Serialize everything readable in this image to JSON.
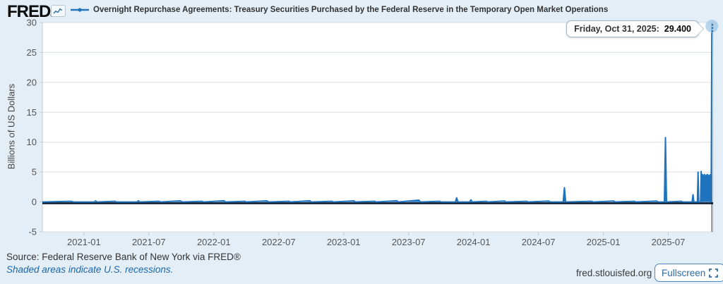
{
  "header": {
    "logo_text": "FRED",
    "logo_reg": "®",
    "series_label": "Overnight Repurchase Agreements: Treasury Securities Purchased by the Federal Reserve in the Temporary Open Market Operations"
  },
  "tooltip": {
    "date_label": "Friday, Oct 31, 2025:",
    "value": "29.400"
  },
  "menu_icon": "⋮",
  "footer": {
    "source": "Source: Federal Reserve Bank of New York via FRED®",
    "recession_note": "Shaded areas indicate U.S. recessions.",
    "site": "fred.stlouisfed.org",
    "fullscreen_label": "Fullscreen"
  },
  "colors": {
    "series": "#1f74bd",
    "zero_line": "#06182c",
    "grid": "#d9dde0",
    "axis": "#c3c9ce",
    "tick_label": "#555555",
    "page_bg": "#e3eef6",
    "plot_bg": "#ffffff",
    "crosshair": "#5a5f64",
    "halo": "#9ec7e8",
    "accent_blue": "#2e6da4"
  },
  "chart_data": {
    "type": "line",
    "title": "Overnight Repurchase Agreements: Treasury Securities Purchased by the Federal Reserve in the Temporary Open Market Operations",
    "xlabel": "",
    "ylabel": "Billions of US Dollars",
    "ylim": [
      -5,
      30
    ],
    "y_ticks": [
      30,
      25,
      20,
      15,
      10,
      5,
      0,
      -5
    ],
    "x_domain": [
      2020.68,
      2025.845
    ],
    "x_ticks": [
      {
        "label": "2021-01",
        "t": 2021.0
      },
      {
        "label": "2021-07",
        "t": 2021.5
      },
      {
        "label": "2022-01",
        "t": 2022.0
      },
      {
        "label": "2022-07",
        "t": 2022.5
      },
      {
        "label": "2023-01",
        "t": 2023.0
      },
      {
        "label": "2023-07",
        "t": 2023.5
      },
      {
        "label": "2024-01",
        "t": 2024.0
      },
      {
        "label": "2024-07",
        "t": 2024.5
      },
      {
        "label": "2025-01",
        "t": 2025.0
      },
      {
        "label": "2025-07",
        "t": 2025.5
      }
    ],
    "grid": true,
    "legend_position": "top",
    "last_point": {
      "t": 2025.835,
      "value": 29.4,
      "date": "Friday, Oct 31, 2025"
    },
    "points": [
      [
        2020.68,
        0
      ],
      [
        2020.9,
        0.12
      ],
      [
        2020.92,
        0
      ],
      [
        2021.08,
        0
      ],
      [
        2021.09,
        0.18
      ],
      [
        2021.1,
        0
      ],
      [
        2021.24,
        0.12
      ],
      [
        2021.25,
        0
      ],
      [
        2021.41,
        0
      ],
      [
        2021.42,
        0.2
      ],
      [
        2021.43,
        0
      ],
      [
        2021.58,
        0.12
      ],
      [
        2021.59,
        0
      ],
      [
        2021.74,
        0.18
      ],
      [
        2021.76,
        0
      ],
      [
        2021.91,
        0.12
      ],
      [
        2021.92,
        0
      ],
      [
        2022.08,
        0.2
      ],
      [
        2022.09,
        0
      ],
      [
        2022.24,
        0.12
      ],
      [
        2022.25,
        0
      ],
      [
        2022.41,
        0.18
      ],
      [
        2022.42,
        0
      ],
      [
        2022.58,
        0.12
      ],
      [
        2022.59,
        0
      ],
      [
        2022.74,
        0.2
      ],
      [
        2022.75,
        0
      ],
      [
        2022.91,
        0.12
      ],
      [
        2022.92,
        0
      ],
      [
        2023.08,
        0.18
      ],
      [
        2023.09,
        0
      ],
      [
        2023.24,
        0.12
      ],
      [
        2023.25,
        0
      ],
      [
        2023.41,
        0.2
      ],
      [
        2023.42,
        0
      ],
      [
        2023.58,
        0.3
      ],
      [
        2023.59,
        0
      ],
      [
        2023.74,
        0.12
      ],
      [
        2023.75,
        0
      ],
      [
        2023.86,
        0
      ],
      [
        2023.87,
        0.7
      ],
      [
        2023.88,
        0
      ],
      [
        2023.97,
        0
      ],
      [
        2023.98,
        0.35
      ],
      [
        2023.99,
        0
      ],
      [
        2024.1,
        0.12
      ],
      [
        2024.11,
        0
      ],
      [
        2024.24,
        0.15
      ],
      [
        2024.25,
        0
      ],
      [
        2024.41,
        0.12
      ],
      [
        2024.42,
        0
      ],
      [
        2024.58,
        0.15
      ],
      [
        2024.59,
        0
      ],
      [
        2024.69,
        0
      ],
      [
        2024.7,
        2.4
      ],
      [
        2024.71,
        0
      ],
      [
        2024.91,
        0.12
      ],
      [
        2024.92,
        0
      ],
      [
        2025.08,
        0.15
      ],
      [
        2025.09,
        0
      ],
      [
        2025.24,
        0.12
      ],
      [
        2025.25,
        0
      ],
      [
        2025.41,
        0.15
      ],
      [
        2025.42,
        0
      ],
      [
        2025.47,
        0
      ],
      [
        2025.478,
        10.75
      ],
      [
        2025.486,
        0
      ],
      [
        2025.6,
        0.12
      ],
      [
        2025.61,
        0
      ],
      [
        2025.683,
        0
      ],
      [
        2025.69,
        1.2
      ],
      [
        2025.697,
        0
      ],
      [
        2025.724,
        0
      ],
      [
        2025.729,
        5.0
      ],
      [
        2025.734,
        0
      ],
      [
        2025.748,
        0
      ],
      [
        2025.753,
        5.1
      ],
      [
        2025.758,
        0.6
      ],
      [
        2025.762,
        4.6
      ],
      [
        2025.77,
        4.2
      ],
      [
        2025.778,
        4.6
      ],
      [
        2025.79,
        4.25
      ],
      [
        2025.8,
        4.6
      ],
      [
        2025.81,
        4.3
      ],
      [
        2025.822,
        4.55
      ],
      [
        2025.827,
        0.6
      ],
      [
        2025.83,
        0
      ],
      [
        2025.835,
        29.4
      ]
    ]
  }
}
